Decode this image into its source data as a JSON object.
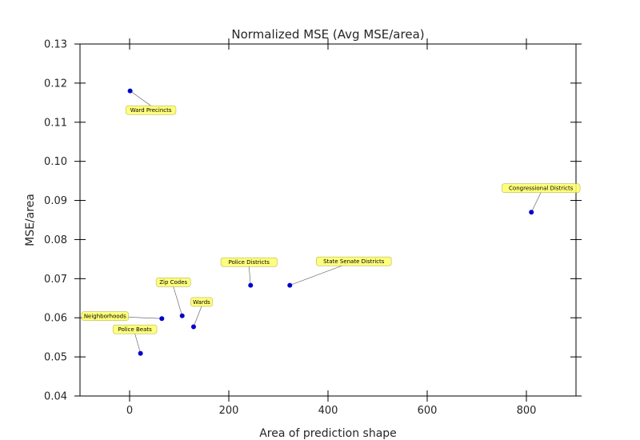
{
  "chart_data": {
    "type": "scatter",
    "title": "Normalized MSE (Avg MSE/area)",
    "xlabel": "Area of prediction shape",
    "ylabel": "MSE/area",
    "xlim": [
      -100,
      900
    ],
    "ylim": [
      0.04,
      0.13
    ],
    "xticks": [
      0,
      200,
      400,
      600,
      800
    ],
    "yticks": [
      0.04,
      0.05,
      0.06,
      0.07,
      0.08,
      0.09,
      0.1,
      0.11,
      0.12,
      0.13
    ],
    "xtick_labels": [
      "0",
      "200",
      "400",
      "600",
      "800"
    ],
    "ytick_labels": [
      "0.04",
      "0.05",
      "0.06",
      "0.07",
      "0.08",
      "0.09",
      "0.10",
      "0.11",
      "0.12",
      "0.13"
    ],
    "grid": false,
    "colors": {
      "point": "#0000cc",
      "annotation_fill": "#ffff66",
      "annotation_edge": "#b8b85a"
    },
    "points": [
      {
        "label": "Ward Precincts",
        "x": 1,
        "y": 0.118
      },
      {
        "label": "Congressional Districts",
        "x": 810,
        "y": 0.087
      },
      {
        "label": "Police Districts",
        "x": 244,
        "y": 0.0683
      },
      {
        "label": "State Senate Districts",
        "x": 323,
        "y": 0.0683
      },
      {
        "label": "Zip Codes",
        "x": 106,
        "y": 0.0605
      },
      {
        "label": "Neighborhoods",
        "x": 65,
        "y": 0.0598
      },
      {
        "label": "Wards",
        "x": 129,
        "y": 0.0577
      },
      {
        "label": "Police Beats",
        "x": 22,
        "y": 0.0509
      }
    ]
  }
}
